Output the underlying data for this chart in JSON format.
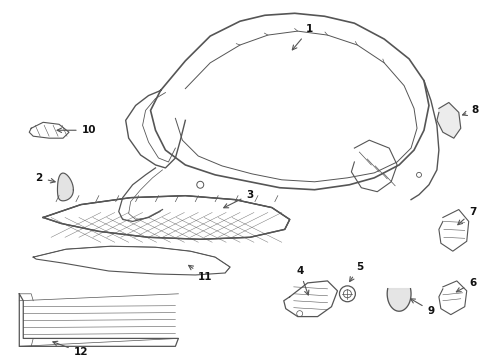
{
  "bg_color": "#ffffff",
  "line_color": "#555555",
  "text_color": "#111111",
  "fig_w": 4.9,
  "fig_h": 3.6,
  "dpi": 100
}
